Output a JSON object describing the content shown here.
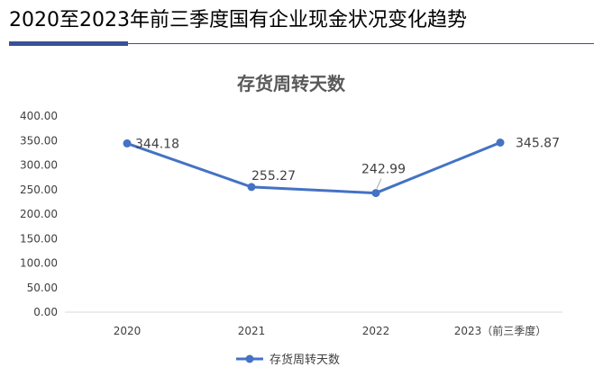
{
  "page": {
    "title": "2020至2023年前三季度国有企业现金状况变化趋势"
  },
  "colors": {
    "series": "#4472c4",
    "title_rule": "#3a5199",
    "axis_text": "#404040",
    "chart_title": "#595959",
    "axis_line": "#d9d9d9"
  },
  "chart_data": {
    "type": "line",
    "title": "存货周转天数",
    "categories": [
      "2020",
      "2021",
      "2022",
      "2023（前三季度）"
    ],
    "series": [
      {
        "name": "存货周转天数",
        "values": [
          344.18,
          255.27,
          242.99,
          345.87
        ],
        "labels": [
          "344.18",
          "255.27",
          "242.99",
          "345.87"
        ]
      }
    ],
    "yticks": [
      "0.00",
      "50.00",
      "100.00",
      "150.00",
      "200.00",
      "250.00",
      "300.00",
      "350.00",
      "400.00"
    ],
    "ylim": [
      0,
      400
    ],
    "grid": false,
    "legend_position": "bottom"
  }
}
